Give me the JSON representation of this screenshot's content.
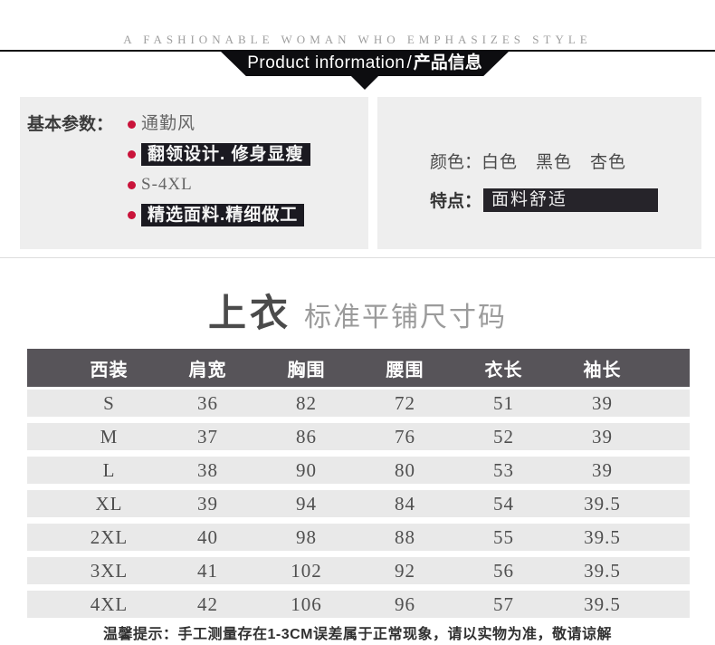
{
  "tagline": "A FASHIONABLE WOMAN WHO EMPHASIZES STYLE",
  "banner": {
    "title_en": "Product information",
    "separator": "/",
    "title_zh": "产品信息"
  },
  "basic_params": {
    "label": "基本参数：",
    "items": [
      {
        "text": "通勤风",
        "highlight": false
      },
      {
        "text": "翻领设计. 修身显瘦",
        "highlight": true
      },
      {
        "text": "S-4XL",
        "highlight": false
      },
      {
        "text": "精选面料.精细做工",
        "highlight": true
      }
    ]
  },
  "attributes": {
    "color_label": "颜色：",
    "color_values": "白色　黑色　杏色",
    "feature_label": "特点：",
    "feature_value": "面料舒适"
  },
  "size_section": {
    "title": "上衣",
    "subtitle": "标准平铺尺寸码"
  },
  "size_table": {
    "headers": [
      "西装",
      "肩宽",
      "胸围",
      "腰围",
      "衣长",
      "袖长"
    ],
    "rows": [
      [
        "S",
        "36",
        "82",
        "72",
        "51",
        "39"
      ],
      [
        "M",
        "37",
        "86",
        "76",
        "52",
        "39"
      ],
      [
        "L",
        "38",
        "90",
        "80",
        "53",
        "39"
      ],
      [
        "XL",
        "39",
        "94",
        "84",
        "54",
        "39.5"
      ],
      [
        "2XL",
        "40",
        "98",
        "88",
        "55",
        "39.5"
      ],
      [
        "3XL",
        "41",
        "102",
        "92",
        "56",
        "39.5"
      ],
      [
        "4XL",
        "42",
        "106",
        "96",
        "57",
        "39.5"
      ]
    ]
  },
  "note": "温馨提示：手工测量存在1-3CM误差属于正常现象，请以实物为准，敬请谅解",
  "colors": {
    "accent_red": "#c9133a",
    "highlight_bg": "#1b1a21",
    "feature_bar_bg": "#26242a",
    "banner_bg": "#0d0d10",
    "panel_bg": "#eeeeee",
    "table_header_bg": "#575459",
    "table_row_bg": "#e9e9e9"
  }
}
